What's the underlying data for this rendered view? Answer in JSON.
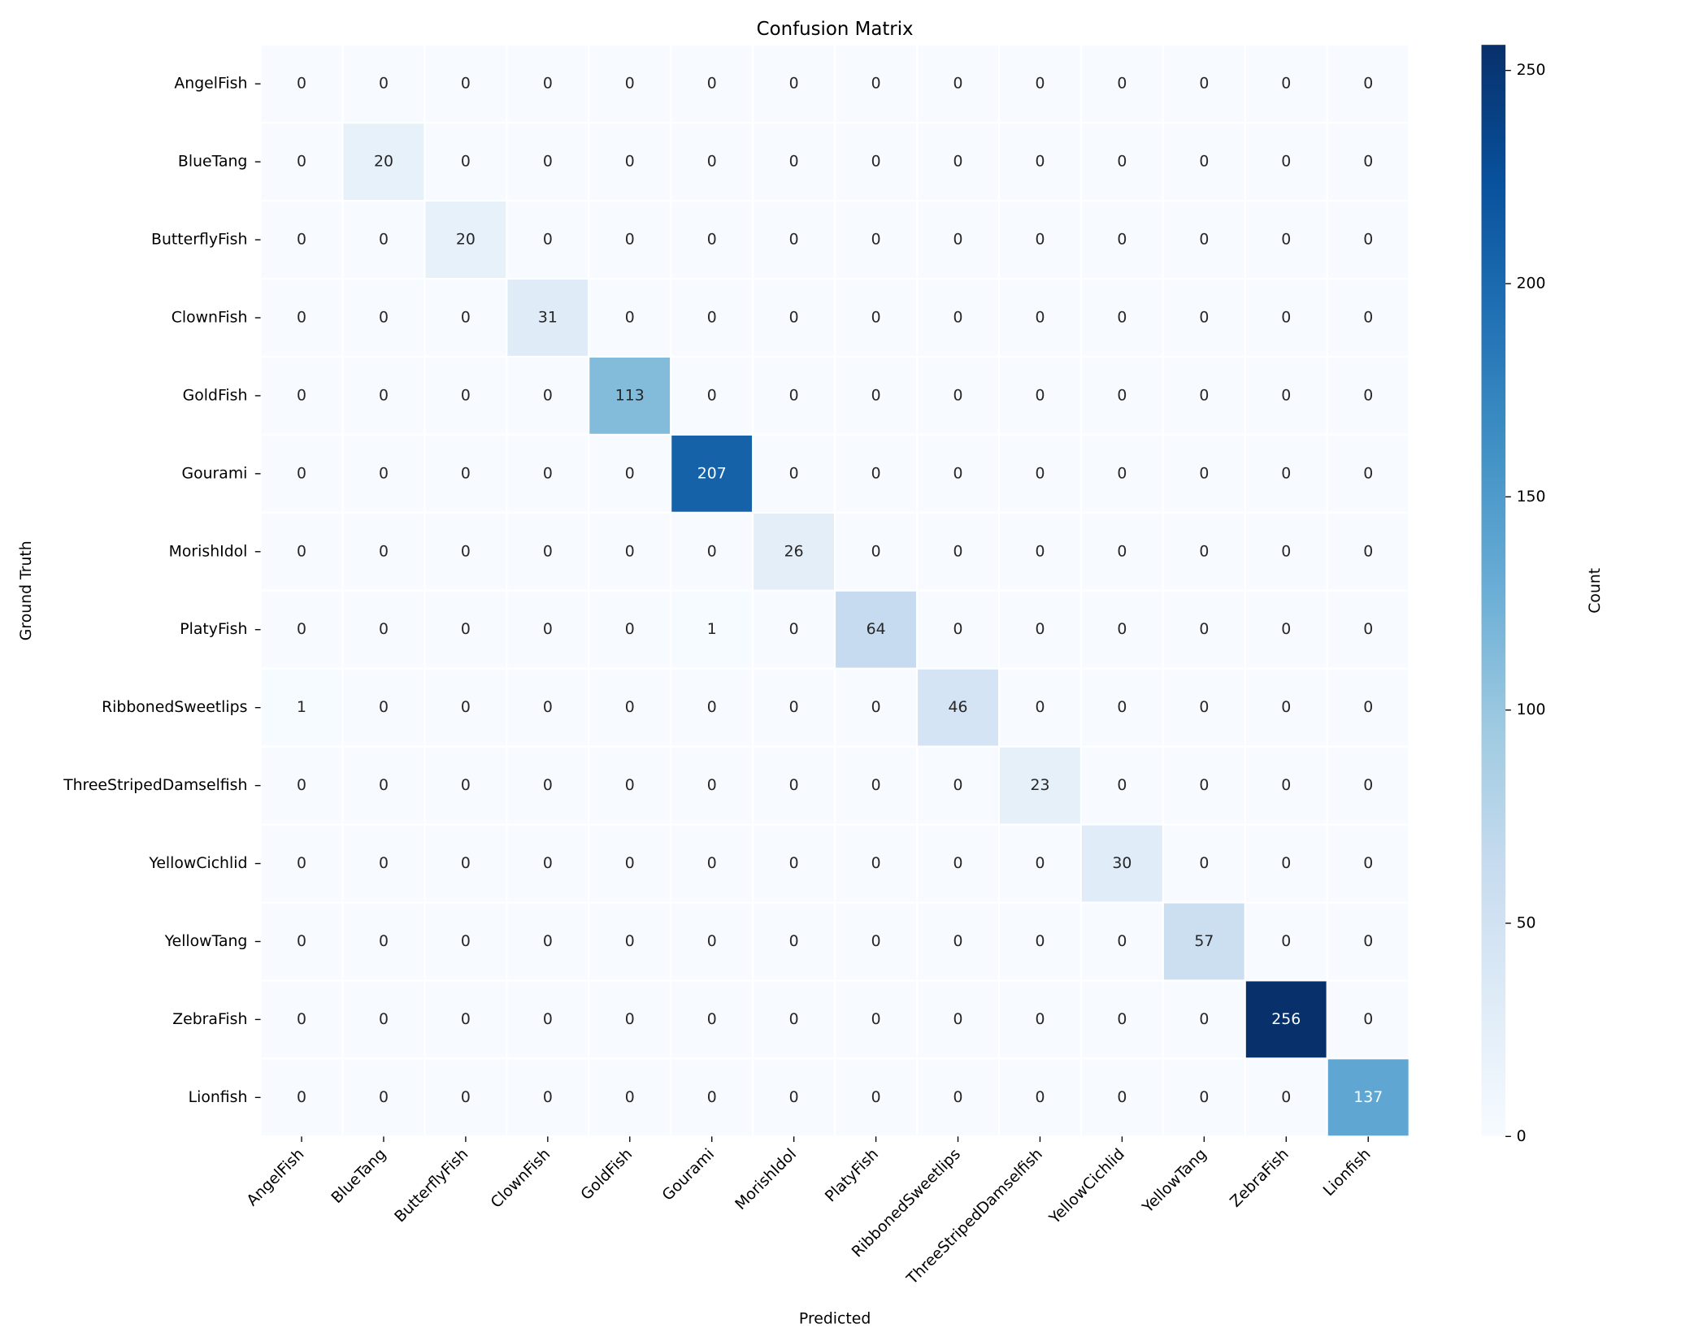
{
  "chart_data": {
    "type": "heatmap",
    "title": "Confusion Matrix",
    "x_label": "Predicted",
    "y_label": "Ground Truth",
    "x_categories": [
      "AngelFish",
      "BlueTang",
      "ButterflyFish",
      "ClownFish",
      "GoldFish",
      "Gourami",
      "MorishIdol",
      "PlatyFish",
      "RibbonedSweetlips",
      "ThreeStripedDamselfish",
      "YellowCichlid",
      "YellowTang",
      "ZebraFish",
      "Lionfish"
    ],
    "y_categories": [
      "AngelFish",
      "BlueTang",
      "ButterflyFish",
      "ClownFish",
      "GoldFish",
      "Gourami",
      "MorishIdol",
      "PlatyFish",
      "RibbonedSweetlips",
      "ThreeStripedDamselfish",
      "YellowCichlid",
      "YellowTang",
      "ZebraFish",
      "Lionfish"
    ],
    "values": [
      [
        0,
        0,
        0,
        0,
        0,
        0,
        0,
        0,
        0,
        0,
        0,
        0,
        0,
        0
      ],
      [
        0,
        20,
        0,
        0,
        0,
        0,
        0,
        0,
        0,
        0,
        0,
        0,
        0,
        0
      ],
      [
        0,
        0,
        20,
        0,
        0,
        0,
        0,
        0,
        0,
        0,
        0,
        0,
        0,
        0
      ],
      [
        0,
        0,
        0,
        31,
        0,
        0,
        0,
        0,
        0,
        0,
        0,
        0,
        0,
        0
      ],
      [
        0,
        0,
        0,
        0,
        113,
        0,
        0,
        0,
        0,
        0,
        0,
        0,
        0,
        0
      ],
      [
        0,
        0,
        0,
        0,
        0,
        207,
        0,
        0,
        0,
        0,
        0,
        0,
        0,
        0
      ],
      [
        0,
        0,
        0,
        0,
        0,
        0,
        26,
        0,
        0,
        0,
        0,
        0,
        0,
        0
      ],
      [
        0,
        0,
        0,
        0,
        0,
        1,
        0,
        64,
        0,
        0,
        0,
        0,
        0,
        0
      ],
      [
        1,
        0,
        0,
        0,
        0,
        0,
        0,
        0,
        46,
        0,
        0,
        0,
        0,
        0
      ],
      [
        0,
        0,
        0,
        0,
        0,
        0,
        0,
        0,
        0,
        23,
        0,
        0,
        0,
        0
      ],
      [
        0,
        0,
        0,
        0,
        0,
        0,
        0,
        0,
        0,
        0,
        30,
        0,
        0,
        0
      ],
      [
        0,
        0,
        0,
        0,
        0,
        0,
        0,
        0,
        0,
        0,
        0,
        57,
        0,
        0
      ],
      [
        0,
        0,
        0,
        0,
        0,
        0,
        0,
        0,
        0,
        0,
        0,
        0,
        256,
        0
      ],
      [
        0,
        0,
        0,
        0,
        0,
        0,
        0,
        0,
        0,
        0,
        0,
        0,
        0,
        137
      ]
    ],
    "colormap": [
      "#f7fbff",
      "#deebf7",
      "#c6dbef",
      "#9ecae1",
      "#6baed6",
      "#4292c6",
      "#2171b5",
      "#08519c",
      "#08306b"
    ],
    "colorbar_label": "Count",
    "clim": [
      0,
      256
    ],
    "colorbar_ticks": [
      0,
      50,
      100,
      150,
      200,
      250
    ]
  }
}
